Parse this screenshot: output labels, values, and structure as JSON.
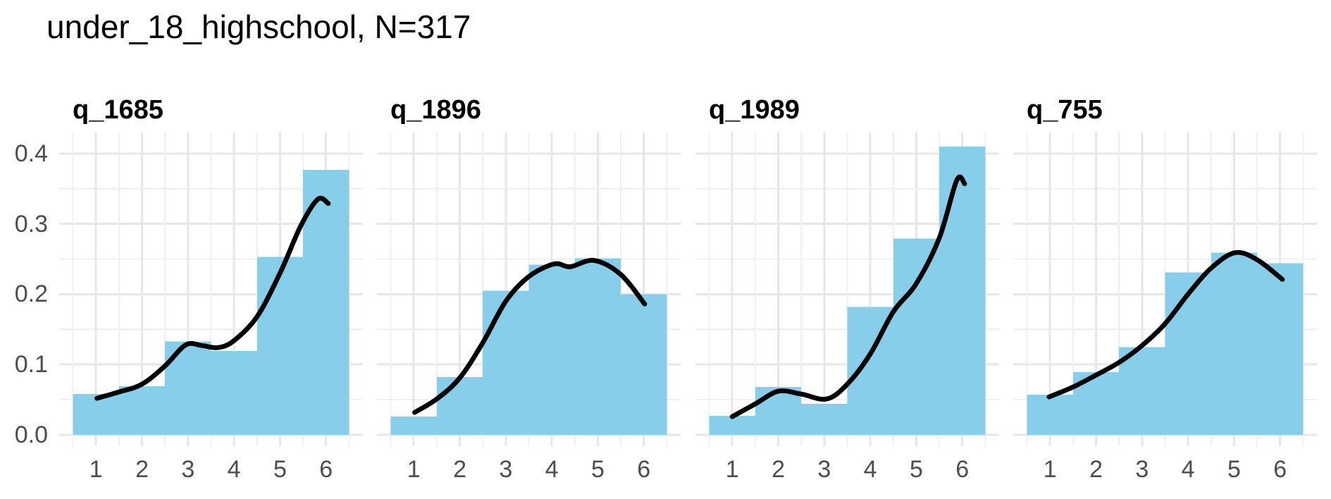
{
  "style": {
    "background": "#FFFFFF",
    "bar_fill": "#87CEEB",
    "curve_color": "#000000",
    "grid_major": "#E7E7E7",
    "grid_minor": "#F0F0F0",
    "title_color": "#000000",
    "facet_label_color": "#000000",
    "tick_label_color": "#4D4D4D"
  },
  "chart_data": {
    "type": "bar",
    "subtype": "faceted probability histogram with kernel density overlay",
    "title": "under_18_highschool, N=317",
    "n_label": "N=317",
    "xlabel": "",
    "ylabel": "",
    "categories": [
      1,
      2,
      3,
      4,
      5,
      6
    ],
    "xticks": [
      "1",
      "2",
      "3",
      "4",
      "5",
      "6"
    ],
    "yticks": [
      "0.0",
      "0.1",
      "0.2",
      "0.3",
      "0.4"
    ],
    "ytick_values": [
      0.0,
      0.1,
      0.2,
      0.3,
      0.4
    ],
    "xlim": [
      0.2,
      6.8
    ],
    "ylim": [
      -0.016,
      0.43
    ],
    "bin_width": 1,
    "grid": "major and minor, light gray, no axis lines",
    "legend_position": "none",
    "panels": [
      {
        "label": "q_1685",
        "proportions": [
          0.058,
          0.069,
          0.133,
          0.119,
          0.253,
          0.377
        ],
        "density": [
          [
            1.02,
            0.052
          ],
          [
            1.5,
            0.061
          ],
          [
            2,
            0.072
          ],
          [
            2.5,
            0.098
          ],
          [
            2.95,
            0.128
          ],
          [
            3.3,
            0.127
          ],
          [
            3.65,
            0.124
          ],
          [
            4,
            0.134
          ],
          [
            4.5,
            0.168
          ],
          [
            5,
            0.23
          ],
          [
            5.45,
            0.297
          ],
          [
            5.82,
            0.335
          ],
          [
            6.05,
            0.329
          ]
        ]
      },
      {
        "label": "q_1896",
        "proportions": [
          0.026,
          0.082,
          0.205,
          0.242,
          0.251,
          0.2
        ],
        "density": [
          [
            1.02,
            0.032
          ],
          [
            1.5,
            0.051
          ],
          [
            2,
            0.081
          ],
          [
            2.5,
            0.131
          ],
          [
            3,
            0.19
          ],
          [
            3.5,
            0.225
          ],
          [
            4.05,
            0.243
          ],
          [
            4.4,
            0.239
          ],
          [
            4.92,
            0.248
          ],
          [
            5.5,
            0.228
          ],
          [
            6.02,
            0.186
          ]
        ]
      },
      {
        "label": "q_1989",
        "proportions": [
          0.027,
          0.068,
          0.044,
          0.182,
          0.279,
          0.41
        ],
        "density": [
          [
            1.0,
            0.026
          ],
          [
            1.5,
            0.044
          ],
          [
            2,
            0.062
          ],
          [
            2.5,
            0.058
          ],
          [
            3.05,
            0.051
          ],
          [
            3.5,
            0.072
          ],
          [
            4,
            0.115
          ],
          [
            4.5,
            0.175
          ],
          [
            5,
            0.215
          ],
          [
            5.5,
            0.28
          ],
          [
            5.88,
            0.362
          ],
          [
            6.05,
            0.357
          ]
        ]
      },
      {
        "label": "q_755",
        "proportions": [
          0.057,
          0.089,
          0.125,
          0.231,
          0.259,
          0.244
        ],
        "density": [
          [
            0.98,
            0.054
          ],
          [
            1.5,
            0.068
          ],
          [
            2,
            0.085
          ],
          [
            2.5,
            0.103
          ],
          [
            3,
            0.127
          ],
          [
            3.5,
            0.158
          ],
          [
            4,
            0.2
          ],
          [
            4.5,
            0.237
          ],
          [
            5.02,
            0.259
          ],
          [
            5.5,
            0.249
          ],
          [
            6.05,
            0.221
          ]
        ]
      }
    ]
  }
}
